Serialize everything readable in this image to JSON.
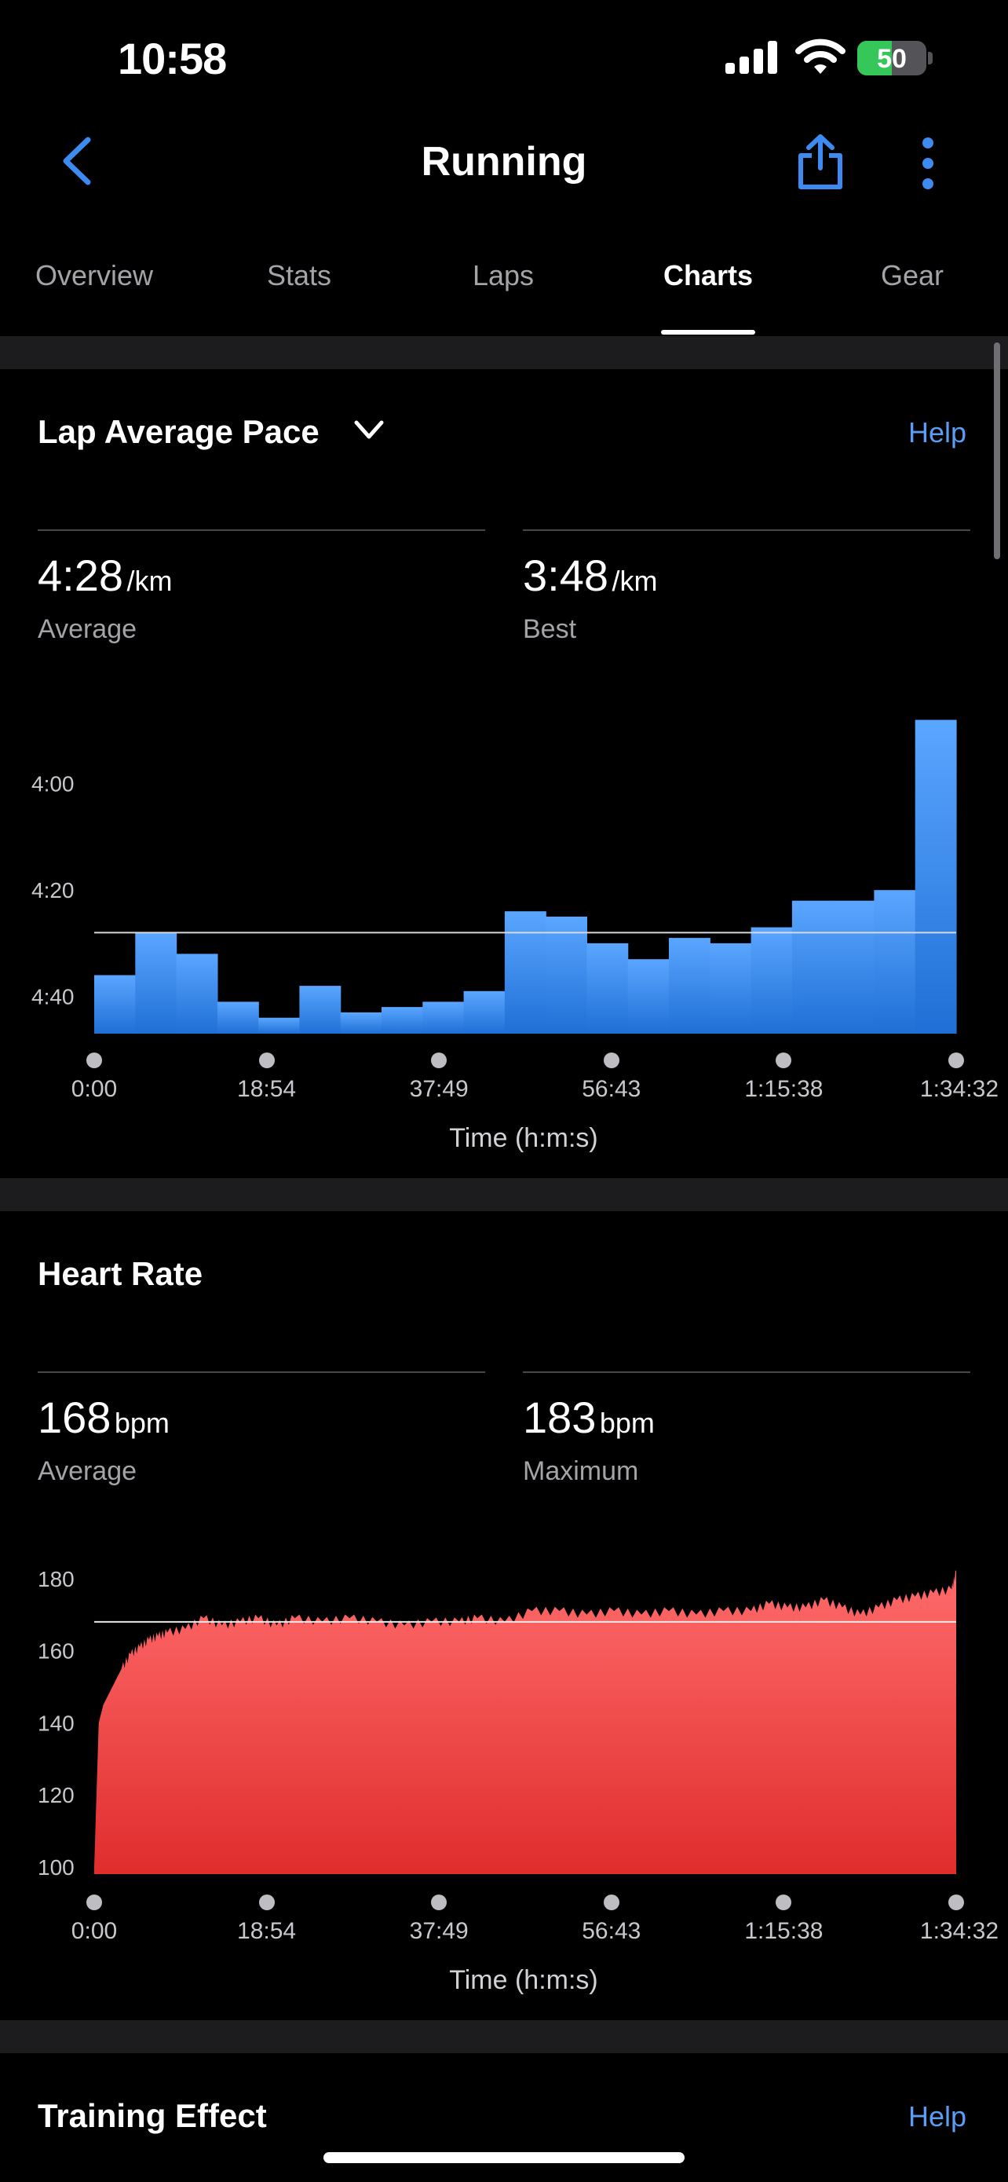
{
  "status": {
    "time": "10:58",
    "battery": "50",
    "battery_level": 0.5
  },
  "nav": {
    "title": "Running",
    "icons": [
      "chevron-left-icon",
      "share-icon",
      "more-vertical-icon"
    ],
    "accent": "#3d8bf0"
  },
  "tabs": [
    {
      "label": "Overview",
      "active": false
    },
    {
      "label": "Stats",
      "active": false
    },
    {
      "label": "Laps",
      "active": false
    },
    {
      "label": "Charts",
      "active": true
    },
    {
      "label": "Gear",
      "active": false
    }
  ],
  "pace": {
    "title": "Lap Average Pace",
    "help": "Help",
    "average": {
      "value": "4:28",
      "unit": "/km",
      "label": "Average"
    },
    "best": {
      "value": "3:48",
      "unit": "/km",
      "label": "Best"
    },
    "chart_data": {
      "type": "bar",
      "y_ticks": [
        "4:00",
        "4:20",
        "4:40"
      ],
      "y_tick_values": [
        240,
        260,
        280
      ],
      "ylim_sec_per_km": [
        230,
        287
      ],
      "reference_line_sec_per_km": 268,
      "values_sec_per_km": [
        276,
        268,
        272,
        281,
        284,
        278,
        283,
        282,
        281,
        279,
        264,
        265,
        270,
        273,
        269,
        270,
        267,
        262,
        262,
        260,
        228
      ],
      "x_ticks": [
        "0:00",
        "18:54",
        "37:49",
        "56:43",
        "1:15:38",
        "1:34:32"
      ],
      "xlabel": "Time (h:m:s)",
      "color": "#3f8cf2"
    }
  },
  "hr": {
    "title": "Heart Rate",
    "average": {
      "value": "168",
      "unit": "bpm",
      "label": "Average"
    },
    "maximum": {
      "value": "183",
      "unit": "bpm",
      "label": "Maximum"
    },
    "chart_data": {
      "type": "area",
      "y_ticks": [
        "180",
        "160",
        "140",
        "120",
        "100"
      ],
      "ylim": [
        98,
        183
      ],
      "reference_line": 168,
      "series_minutes": [
        0,
        0.5,
        1,
        2,
        3,
        4,
        5,
        6,
        7,
        8,
        10,
        12,
        14,
        16,
        18,
        20,
        22,
        25,
        28,
        31,
        34,
        37,
        40,
        42,
        45,
        48,
        51,
        54,
        57,
        60,
        63,
        66,
        69,
        72,
        74,
        76,
        78,
        80,
        82,
        84,
        86,
        88,
        90,
        92,
        94,
        94.5
      ],
      "series_bpm": [
        100,
        140,
        145,
        150,
        155,
        159,
        161,
        163,
        164,
        165,
        166,
        169,
        167,
        168,
        169,
        167,
        169,
        168,
        169,
        168,
        167,
        168,
        168,
        169,
        168,
        171,
        171,
        170,
        171,
        170,
        171,
        170,
        171,
        171,
        173,
        172,
        172,
        174,
        172,
        170,
        172,
        174,
        175,
        176,
        177,
        182
      ],
      "x_ticks": [
        "0:00",
        "18:54",
        "37:49",
        "56:43",
        "1:15:38",
        "1:34:32"
      ],
      "xlabel": "Time (h:m:s)",
      "color_top": "#ff6b6b",
      "color_bottom": "#e02d2d"
    }
  },
  "training": {
    "title": "Training Effect",
    "help": "Help"
  }
}
